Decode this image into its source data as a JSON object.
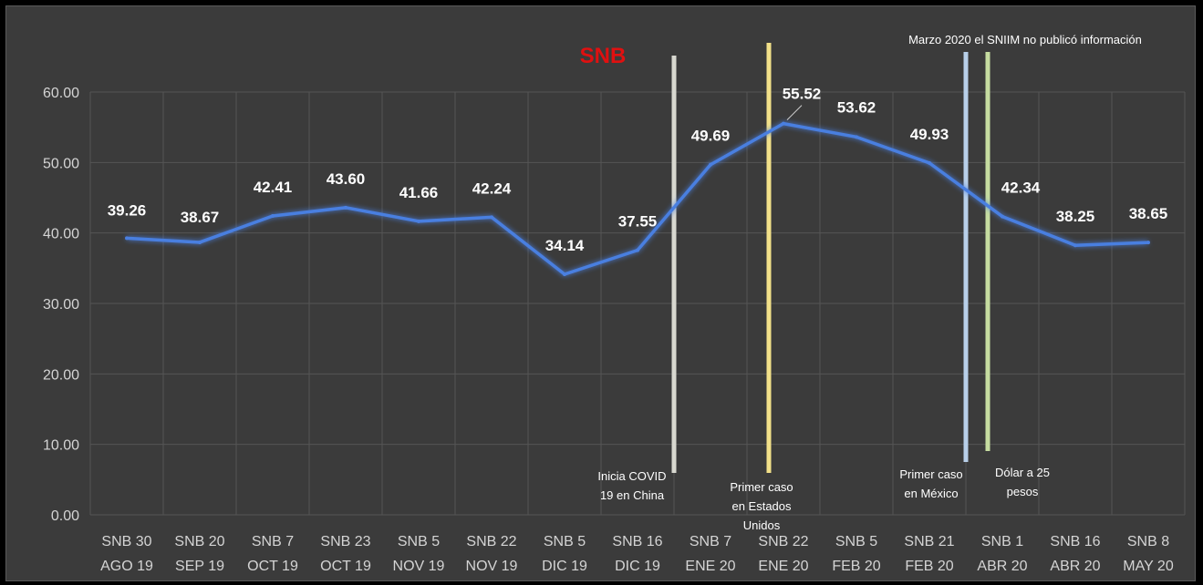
{
  "chart_data": {
    "type": "line",
    "title": "SNB",
    "title_color": "#e01010",
    "top_note": "Marzo 2020 el SNIIM no publicó información",
    "categories": [
      [
        "SNB 30",
        "AGO 19"
      ],
      [
        "SNB 20",
        "SEP 19"
      ],
      [
        "SNB 7",
        "OCT 19"
      ],
      [
        "SNB 23",
        "OCT 19"
      ],
      [
        "SNB 5",
        "NOV 19"
      ],
      [
        "SNB 22",
        "NOV 19"
      ],
      [
        "SNB 5",
        "DIC 19"
      ],
      [
        "SNB 16",
        "DIC 19"
      ],
      [
        "SNB 7",
        "ENE 20"
      ],
      [
        "SNB 22",
        "ENE 20"
      ],
      [
        "SNB 5",
        "FEB 20"
      ],
      [
        "SNB 21",
        "FEB 20"
      ],
      [
        "SNB 1",
        "ABR 20"
      ],
      [
        "SNB 16",
        "ABR 20"
      ],
      [
        "SNB 8",
        "MAY 20"
      ]
    ],
    "values": [
      39.26,
      38.67,
      42.41,
      43.6,
      41.66,
      42.24,
      34.14,
      37.55,
      49.69,
      55.52,
      53.62,
      49.93,
      42.34,
      38.25,
      38.65
    ],
    "value_labels": [
      "39.26",
      "38.67",
      "42.41",
      "43.60",
      "41.66",
      "42.24",
      "34.14",
      "37.55",
      "49.69",
      "55.52",
      "53.62",
      "49.93",
      "42.34",
      "38.25",
      "38.65"
    ],
    "ylim": [
      0,
      60
    ],
    "yticks": [
      "0.00",
      "10.00",
      "20.00",
      "30.00",
      "40.00",
      "50.00",
      "60.00"
    ],
    "grid": true,
    "line_color": "#4a7fe0",
    "annotations": [
      {
        "text_lines": [
          "Inicia COVID",
          "19 en China"
        ],
        "after_index": 7,
        "color": "#d8d8d0"
      },
      {
        "text_lines": [
          "Primer caso",
          "en Estados",
          "Unidos"
        ],
        "after_index": 8.8,
        "color": "#f2e089"
      },
      {
        "text_lines": [
          "Primer caso",
          "en México"
        ],
        "after_index": 11.5,
        "color": "#b8cfe9"
      },
      {
        "text_lines": [
          "Dólar a 25",
          "pesos"
        ],
        "after_index": 11.8,
        "color": "#c6dca0"
      }
    ]
  }
}
